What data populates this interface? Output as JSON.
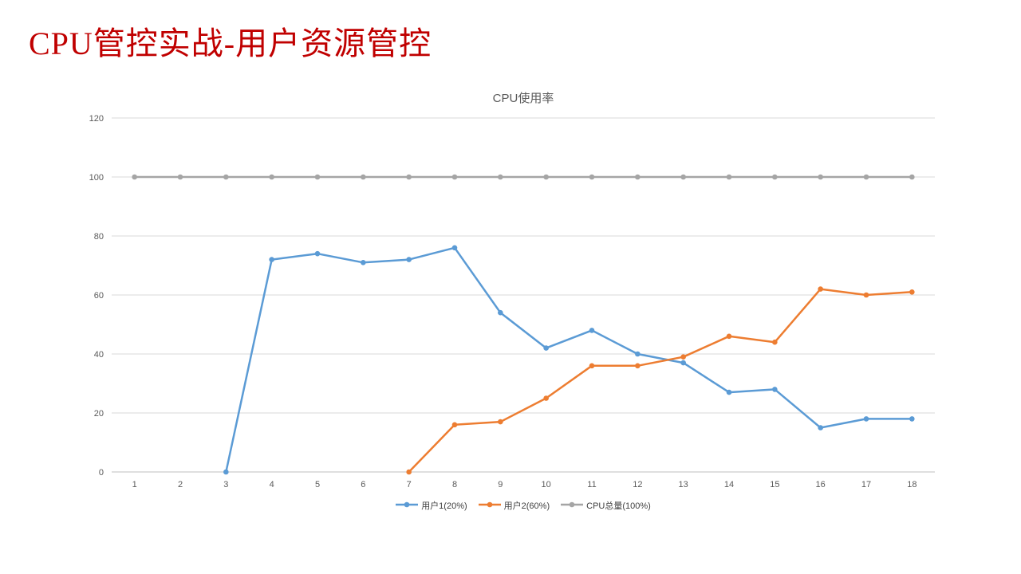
{
  "page": {
    "title": "CPU管控实战-用户资源管控",
    "title_color": "#c00000"
  },
  "chart_data": {
    "type": "line",
    "title": "CPU使用率",
    "xlabel": "",
    "ylabel": "",
    "categories": [
      1,
      2,
      3,
      4,
      5,
      6,
      7,
      8,
      9,
      10,
      11,
      12,
      13,
      14,
      15,
      16,
      17,
      18
    ],
    "series": [
      {
        "name": "用户1(20%)",
        "color": "#5B9BD5",
        "values": [
          null,
          null,
          0,
          72,
          74,
          71,
          72,
          76,
          54,
          42,
          48,
          40,
          37,
          27,
          28,
          15,
          18,
          18
        ]
      },
      {
        "name": "用户2(60%)",
        "color": "#ED7D31",
        "values": [
          null,
          null,
          null,
          null,
          null,
          null,
          0,
          16,
          17,
          25,
          36,
          36,
          39,
          46,
          44,
          62,
          60,
          61
        ]
      },
      {
        "name": "CPU总量(100%)",
        "color": "#A5A5A5",
        "values": [
          100,
          100,
          100,
          100,
          100,
          100,
          100,
          100,
          100,
          100,
          100,
          100,
          100,
          100,
          100,
          100,
          100,
          100
        ]
      }
    ],
    "ylim": [
      0,
      120
    ],
    "ytick_step": 20,
    "grid": true,
    "gridline_color": "#D9D9D9",
    "legend_position": "bottom"
  }
}
